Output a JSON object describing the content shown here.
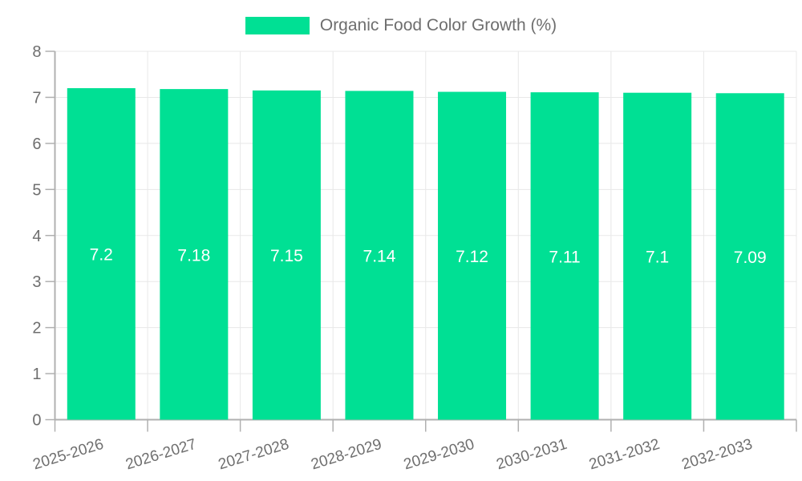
{
  "chart_data": {
    "type": "bar",
    "title": "",
    "legend": {
      "position": "top"
    },
    "categories": [
      "2025-2026",
      "2026-2027",
      "2027-2028",
      "2028-2029",
      "2029-2030",
      "2030-2031",
      "2031-2032",
      "2032-2033"
    ],
    "series": [
      {
        "name": "Organic Food Color Growth (%)",
        "values": [
          7.2,
          7.18,
          7.15,
          7.14,
          7.12,
          7.11,
          7.1,
          7.09
        ]
      }
    ],
    "value_labels": [
      "7.2",
      "7.18",
      "7.15",
      "7.14",
      "7.12",
      "7.11",
      "7.1",
      "7.09"
    ],
    "xlabel": "",
    "ylabel": "",
    "ylim": [
      0,
      8
    ],
    "yticks": [
      "0",
      "1",
      "2",
      "3",
      "4",
      "5",
      "6",
      "7",
      "8"
    ],
    "grid": true,
    "colors": {
      "bar": "#00E094",
      "grid": "#e8e8e8",
      "axis": "#b0b0b0",
      "tick": "#b0b0b0",
      "axis_label": "#6e6e6e",
      "value_label": "#ffffff"
    }
  }
}
